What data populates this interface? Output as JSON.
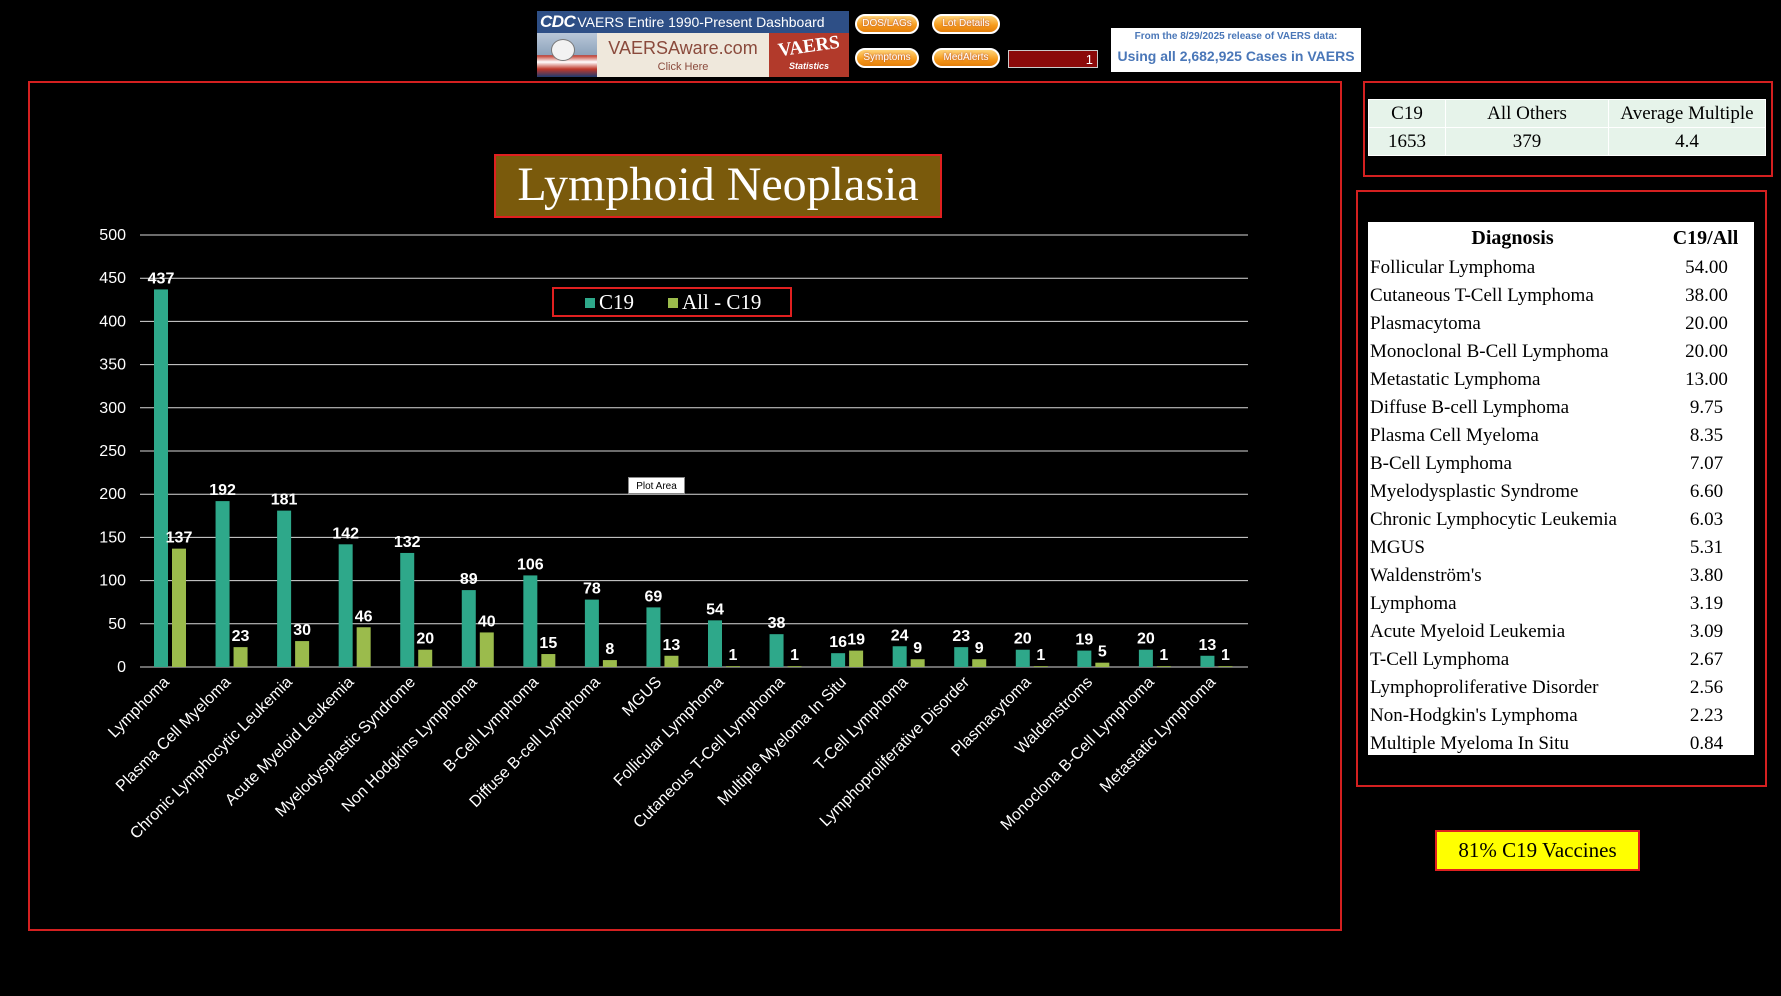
{
  "header": {
    "cdc_logo": "CDC",
    "dashboard_title": "VAERS Entire 1990-Present Dashboard",
    "vaersaware": "VAERSAware.com",
    "click_here": "Click Here",
    "vaers_badge": "VAERS",
    "vaers_badge_sub": "Statistics",
    "buttons": [
      "DOS/LAGs",
      "Lot Details",
      "Symptoms",
      "MedAlerts"
    ],
    "page_input": "1",
    "release_line1": "From the 8/29/2025 release of VAERS data:",
    "release_line2": "Using all 2,682,925 Cases in VAERS"
  },
  "summary": {
    "headers": [
      "C19",
      "All Others",
      "Average Multiple"
    ],
    "values": [
      "1653",
      "379",
      "4.4"
    ]
  },
  "diagnosis_table": {
    "headers": [
      "Diagnosis",
      "C19/All"
    ],
    "rows": [
      [
        "Follicular Lymphoma",
        "54.00"
      ],
      [
        "Cutaneous T-Cell Lymphoma",
        "38.00"
      ],
      [
        "Plasmacytoma",
        "20.00"
      ],
      [
        "Monoclonal B-Cell Lymphoma",
        "20.00"
      ],
      [
        "Metastatic Lymphoma",
        "13.00"
      ],
      [
        "Diffuse B-cell Lymphoma",
        "9.75"
      ],
      [
        "Plasma Cell Myeloma",
        "8.35"
      ],
      [
        "B-Cell Lymphoma",
        "7.07"
      ],
      [
        "Myelodysplastic Syndrome",
        "6.60"
      ],
      [
        "Chronic Lymphocytic Leukemia",
        "6.03"
      ],
      [
        "MGUS",
        "5.31"
      ],
      [
        "Waldenström's",
        "3.80"
      ],
      [
        "Lymphoma",
        "3.19"
      ],
      [
        "Acute Myeloid Leukemia",
        "3.09"
      ],
      [
        "T-Cell Lymphoma",
        "2.67"
      ],
      [
        "Lymphoproliferative Disorder",
        "2.56"
      ],
      [
        "Non-Hodgkin's Lymphoma",
        "2.23"
      ],
      [
        "Multiple Myeloma In Situ",
        "0.84"
      ]
    ]
  },
  "badge": "81% C19 Vaccines",
  "plot_area_tooltip": "Plot Area",
  "colors": {
    "c19": "#2ea88a",
    "all_minus_c19": "#9bbb4c",
    "frame": "#d42020"
  },
  "chart_data": {
    "type": "bar",
    "title": "Lymphoid Neoplasia",
    "categories": [
      "Lymphoma",
      "Plasma Cell Myeloma",
      "Chronic Lymphocytic Leukemia",
      "Acute Myeloid Leukemia",
      "Myelodysplastic Syndrome",
      "Non Hodgkins Lymphoma",
      "B-Cell Lymphoma",
      "Diffuse B-cell Lymphoma",
      "MGUS",
      "Follicular Lymphoma",
      "Cutaneous T-Cell Lymphoma",
      "Multiple Myeloma In Situ",
      "T-Cell Lymphoma",
      "Lymphoproliferative Disorder",
      "Plasmacytoma",
      "Waldenstroms",
      "Monoclona B-Cell Lymphoma",
      "Metastatic Lymphoma"
    ],
    "series": [
      {
        "name": "C19",
        "values": [
          437,
          192,
          181,
          142,
          132,
          89,
          106,
          78,
          69,
          54,
          38,
          16,
          24,
          23,
          20,
          19,
          20,
          13
        ]
      },
      {
        "name": "All - C19",
        "values": [
          137,
          23,
          30,
          46,
          20,
          40,
          15,
          8,
          13,
          1,
          1,
          19,
          9,
          9,
          1,
          5,
          1,
          1
        ]
      }
    ],
    "ylim": [
      0,
      500
    ],
    "yticks": [
      0,
      50,
      100,
      150,
      200,
      250,
      300,
      350,
      400,
      450,
      500
    ],
    "grid": true,
    "legend": "top-center"
  }
}
